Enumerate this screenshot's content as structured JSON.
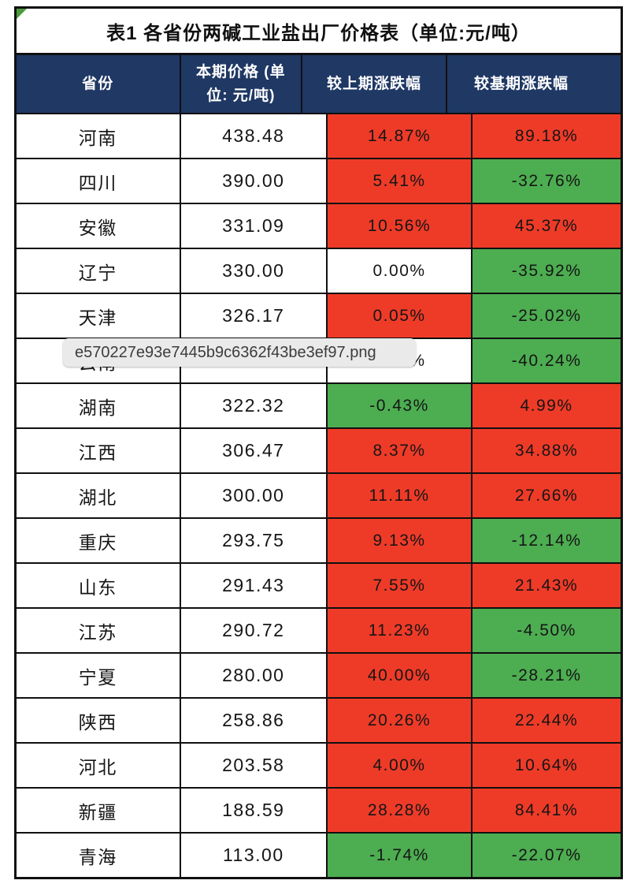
{
  "tooltip": {
    "filename": "e570227e93e7445b9c6362f43be3ef97.png"
  },
  "table": {
    "title": "表1 各省份两碱工业盐出厂价格表（单位:元/吨）",
    "columns": [
      "省份",
      "本期价格 (单位: 元/吨)",
      "较上期涨跌幅",
      "较基期涨跌幅"
    ],
    "colors": {
      "header_bg": "#1f3864",
      "header_text": "#ffffff",
      "up_cell": "#ee3b28",
      "down_cell": "#4dad51",
      "neutral_cell": "#ffffff",
      "corner_marker": "#4d9a3d"
    },
    "rows": [
      {
        "province": "河南",
        "price": "438.48",
        "prev": "14.87%",
        "prev_color": "red",
        "base": "89.18%",
        "base_color": "red"
      },
      {
        "province": "四川",
        "price": "390.00",
        "prev": "5.41%",
        "prev_color": "red",
        "base": "-32.76%",
        "base_color": "green"
      },
      {
        "province": "安徽",
        "price": "331.09",
        "prev": "10.56%",
        "prev_color": "red",
        "base": "45.37%",
        "base_color": "red"
      },
      {
        "province": "辽宁",
        "price": "330.00",
        "prev": "0.00%",
        "prev_color": "white",
        "base": "-35.92%",
        "base_color": "green"
      },
      {
        "province": "天津",
        "price": "326.17",
        "prev": "0.05%",
        "prev_color": "red",
        "base": "-25.02%",
        "base_color": "green"
      },
      {
        "province": "云南",
        "price": "",
        "prev": "0.00%",
        "prev_color": "white",
        "base": "-40.24%",
        "base_color": "green"
      },
      {
        "province": "湖南",
        "price": "322.32",
        "prev": "-0.43%",
        "prev_color": "green",
        "base": "4.99%",
        "base_color": "red"
      },
      {
        "province": "江西",
        "price": "306.47",
        "prev": "8.37%",
        "prev_color": "red",
        "base": "34.88%",
        "base_color": "red"
      },
      {
        "province": "湖北",
        "price": "300.00",
        "prev": "11.11%",
        "prev_color": "red",
        "base": "27.66%",
        "base_color": "red"
      },
      {
        "province": "重庆",
        "price": "293.75",
        "prev": "9.13%",
        "prev_color": "red",
        "base": "-12.14%",
        "base_color": "green"
      },
      {
        "province": "山东",
        "price": "291.43",
        "prev": "7.55%",
        "prev_color": "red",
        "base": "21.43%",
        "base_color": "red"
      },
      {
        "province": "江苏",
        "price": "290.72",
        "prev": "11.23%",
        "prev_color": "red",
        "base": "-4.50%",
        "base_color": "green"
      },
      {
        "province": "宁夏",
        "price": "280.00",
        "prev": "40.00%",
        "prev_color": "red",
        "base": "-28.21%",
        "base_color": "green"
      },
      {
        "province": "陕西",
        "price": "258.86",
        "prev": "20.26%",
        "prev_color": "red",
        "base": "22.44%",
        "base_color": "red"
      },
      {
        "province": "河北",
        "price": "203.58",
        "prev": "4.00%",
        "prev_color": "red",
        "base": "10.64%",
        "base_color": "red"
      },
      {
        "province": "新疆",
        "price": "188.59",
        "prev": "28.28%",
        "prev_color": "red",
        "base": "84.41%",
        "base_color": "red"
      },
      {
        "province": "青海",
        "price": "113.00",
        "prev": "-1.74%",
        "prev_color": "green",
        "base": "-22.07%",
        "base_color": "green"
      }
    ]
  }
}
